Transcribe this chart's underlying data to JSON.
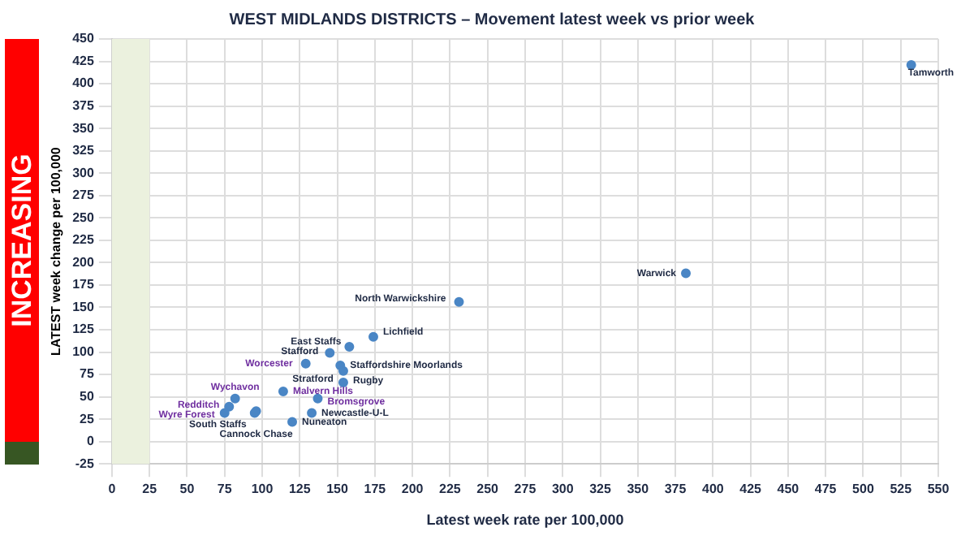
{
  "chart_data": {
    "type": "scatter",
    "title": "WEST MIDLANDS DISTRICTS – Movement latest week vs prior week",
    "xlabel": "Latest week rate per 100,000",
    "ylabel": "LATEST week change per 100,000",
    "series": [
      {
        "color": "#4a86c5",
        "x": [
          532,
          382,
          231,
          174,
          158,
          145,
          152,
          154,
          154,
          96,
          95,
          133,
          120
        ],
        "values": [
          421,
          188,
          156,
          117,
          106,
          99,
          85,
          79,
          66,
          34,
          32,
          32,
          22
        ],
        "value_labels": [
          "Tamworth",
          "Warwick",
          "North Warwickshire",
          "Lichfield",
          "East Staffs",
          "Stafford",
          "Staffordshire Moorlands",
          "Stratford",
          "Rugby",
          "Cannock Chase",
          "South Staffs",
          "Newcastle-U-L",
          "Nuneaton"
        ]
      },
      {
        "color": "#4a86c5",
        "x": [
          129,
          114,
          82,
          78,
          75,
          137
        ],
        "values": [
          87,
          56,
          48,
          39,
          32,
          48
        ],
        "value_labels": [
          "Worcester",
          "Malvern Hills",
          "Wychavon",
          "Redditch",
          "Wyre Forest",
          "Bromsgrove"
        ]
      }
    ],
    "xlim": [
      0,
      550
    ],
    "xticks": [
      0,
      25,
      50,
      75,
      100,
      125,
      150,
      175,
      200,
      225,
      250,
      275,
      300,
      325,
      350,
      375,
      400,
      425,
      450,
      475,
      500,
      525,
      550
    ],
    "ylim": [
      -25,
      450
    ],
    "yticks": [
      -25,
      0,
      25,
      50,
      75,
      100,
      125,
      150,
      175,
      200,
      225,
      250,
      275,
      300,
      325,
      350,
      375,
      400,
      425,
      450
    ],
    "bands": [
      {
        "axis": "x",
        "from": 0,
        "to": 25,
        "color": "#ebf1de"
      }
    ],
    "annotations": [
      "INCREASING"
    ],
    "grid": true,
    "legend": false,
    "marker": "circle"
  }
}
